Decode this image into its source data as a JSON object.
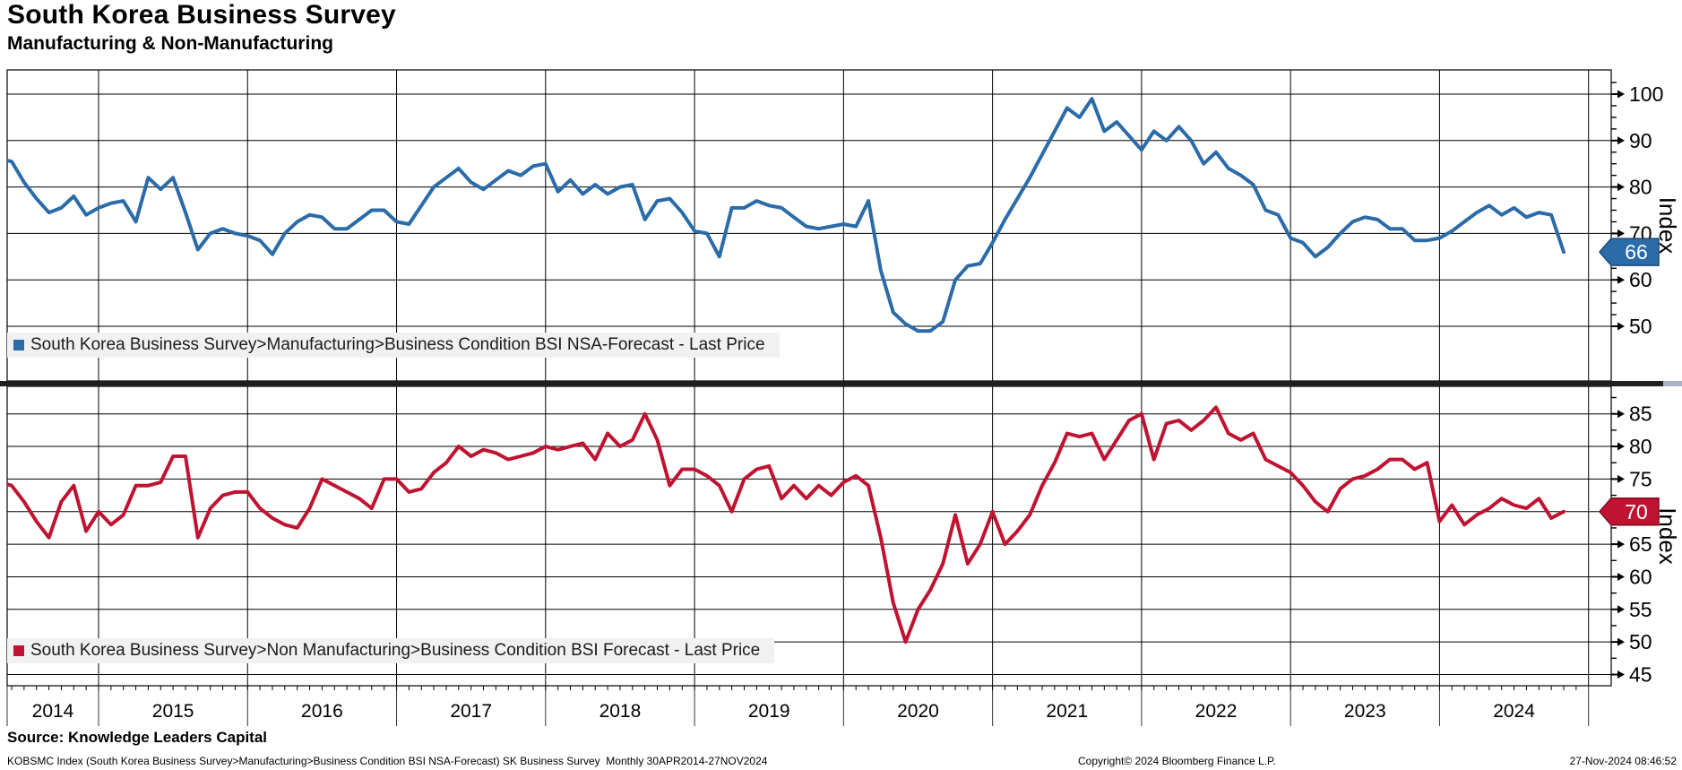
{
  "header": {
    "title": "South Korea Business Survey",
    "subtitle": "Manufacturing & Non-Manufacturing"
  },
  "colors": {
    "manufacturing_blue": "#2b6ba8",
    "manufacturing_blue_dark": "#1d4a75",
    "non_manufacturing_red": "#c01331",
    "non_manufacturing_red_dark": "#7d0c20",
    "legend_background": "#f1f1f1",
    "divider": "#1f1f1f",
    "grid": "#000000"
  },
  "x_axis": {
    "year_labels": [
      "2014",
      "2015",
      "2016",
      "2017",
      "2018",
      "2019",
      "2020",
      "2021",
      "2022",
      "2023",
      "2024"
    ]
  },
  "chart_data": [
    {
      "type": "line",
      "panel": "top",
      "title": "South Korea Business Survey>Manufacturing>Business Condition BSI NSA-Forecast - Last Price",
      "color": "#2b6ba8",
      "frequency": "monthly",
      "x_start": "Apr-2014",
      "x_end": "Nov-2024",
      "ylabel": "Index",
      "y_ticks": [
        100,
        90,
        80,
        70,
        60,
        50
      ],
      "ylim": [
        38,
        105
      ],
      "last_price": 66,
      "values": [
        86,
        86,
        85.5,
        81,
        77.5,
        74.5,
        75.5,
        78,
        74,
        75.5,
        76.5,
        77,
        72.5,
        82,
        79.5,
        82,
        74.5,
        66.5,
        70,
        71,
        70,
        69.5,
        68.5,
        65.5,
        70,
        72.5,
        74,
        73.5,
        71,
        71,
        73,
        75,
        75,
        72.5,
        72,
        76,
        80,
        82,
        84,
        81,
        79.5,
        81.5,
        83.5,
        82.5,
        84.5,
        85,
        79,
        81.5,
        78.5,
        80.5,
        78.5,
        80,
        80.5,
        73,
        77,
        77.5,
        74.5,
        70.5,
        70,
        65,
        75.5,
        75.5,
        77,
        76,
        75.5,
        73.5,
        71.5,
        71,
        71.5,
        72,
        71.5,
        77,
        62,
        53,
        50.5,
        49,
        49,
        51,
        60,
        63,
        63.5,
        68,
        73,
        77.5,
        82,
        87,
        92,
        97,
        95,
        99,
        92,
        94,
        91,
        88,
        92,
        90,
        93,
        90,
        85,
        87.5,
        84,
        82.5,
        80.5,
        75,
        74,
        69,
        68,
        65,
        67,
        70,
        72.5,
        73.5,
        73,
        71,
        71,
        68.5,
        68.5,
        69,
        70.5,
        72.5,
        74.5,
        76,
        74,
        75.5,
        73.5,
        74.5,
        74,
        66
      ]
    },
    {
      "type": "line",
      "panel": "bottom",
      "title": "South Korea Business Survey>Non Manufacturing>Business Condition BSI Forecast - Last Price",
      "color": "#c01331",
      "frequency": "monthly",
      "x_start": "Apr-2014",
      "x_end": "Nov-2024",
      "ylabel": "Index",
      "y_ticks": [
        85,
        80,
        75,
        70,
        65,
        60,
        55,
        50,
        45
      ],
      "ylim": [
        43,
        89
      ],
      "last_price": 70,
      "values": [
        73.5,
        74.5,
        74,
        71.5,
        68.5,
        66,
        71.5,
        74,
        67,
        70,
        68,
        69.5,
        74,
        74,
        74.5,
        78.5,
        78.5,
        66,
        70.5,
        72.5,
        73,
        73,
        70.5,
        69,
        68,
        67.5,
        70.5,
        75,
        74,
        73,
        72,
        70.5,
        75,
        75,
        73,
        73.5,
        76,
        77.5,
        80,
        78.5,
        79.5,
        79,
        78,
        78.5,
        79,
        80,
        79.5,
        80,
        80.5,
        78,
        82,
        80,
        81,
        85,
        81,
        74,
        76.5,
        76.5,
        75.5,
        74,
        70,
        75,
        76.5,
        77,
        72,
        74,
        72,
        74,
        72.5,
        74.5,
        75.5,
        74,
        66,
        56,
        50,
        55,
        58,
        62,
        69.5,
        62,
        65,
        70,
        65,
        67,
        69.5,
        74,
        77.5,
        82,
        81.5,
        82,
        78,
        81,
        84,
        85,
        78,
        83.5,
        84,
        82.5,
        84,
        86,
        82,
        81,
        82,
        78,
        77,
        76,
        74,
        71.5,
        70,
        73.5,
        75,
        75.5,
        76.5,
        78,
        78,
        76.5,
        77.5,
        68.5,
        71,
        68,
        69.5,
        70.5,
        72,
        71,
        70.5,
        72,
        69,
        70
      ]
    }
  ],
  "footer": {
    "source": "Source: Knowledge Leaders Capital",
    "ticker_line": "KOBSMC Index (South Korea Business Survey>Manufacturing>Business Condition BSI NSA-Forecast) SK Business Survey  Monthly 30APR2014-27NOV2024",
    "copyright": "Copyright© 2024 Bloomberg Finance L.P.",
    "timestamp": "27-Nov-2024 08:46:52"
  }
}
